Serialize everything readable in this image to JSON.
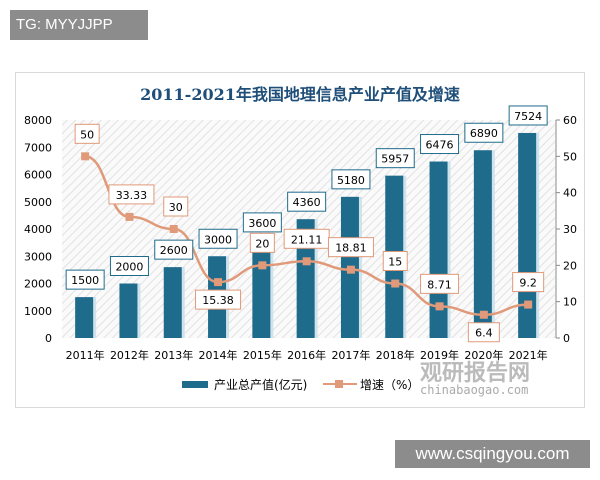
{
  "tag": "TG: MYYJJPP",
  "site": "www.csqingyou.com",
  "watermark": {
    "name": "观研报告网",
    "url": "chinabaogao.com"
  },
  "chart_data": {
    "type": "bar+line",
    "title": "2011-2021年我国地理信息产业产值及增速",
    "categories": [
      "2011年",
      "2012年",
      "2013年",
      "2014年",
      "2015年",
      "2016年",
      "2017年",
      "2018年",
      "2019年",
      "2020年",
      "2021年"
    ],
    "series": [
      {
        "name": "产业总产值(亿元)",
        "type": "bar",
        "axis": "left",
        "color": "#1f6b8c",
        "values": [
          1500,
          2000,
          2600,
          3000,
          3600,
          4360,
          5180,
          5957,
          6476,
          6890,
          7524
        ],
        "labels": [
          "1500",
          "2000",
          "2600",
          "3000",
          "3600",
          "4360",
          "5180",
          "5957",
          "6476",
          "6890",
          "7524"
        ]
      },
      {
        "name": "增速（%）",
        "type": "line",
        "axis": "right",
        "color": "#e09a7a",
        "values": [
          50,
          33.33,
          30,
          15.38,
          20,
          21.11,
          18.81,
          15,
          8.71,
          6.4,
          9.2
        ],
        "labels": [
          "50",
          "33.33",
          "30",
          "15.38",
          "20",
          "21.11",
          "18.81",
          "15",
          "8.71",
          "6.4",
          "9.2"
        ]
      }
    ],
    "y_left": {
      "range": [
        0,
        8000
      ],
      "ticks": [
        "0",
        "1000",
        "2000",
        "3000",
        "4000",
        "5000",
        "6000",
        "7000",
        "8000"
      ]
    },
    "y_right": {
      "range": [
        0,
        60
      ],
      "ticks": [
        "0",
        "10",
        "20",
        "30",
        "40",
        "50",
        "60"
      ]
    },
    "legend": "bottom",
    "grid": false
  }
}
